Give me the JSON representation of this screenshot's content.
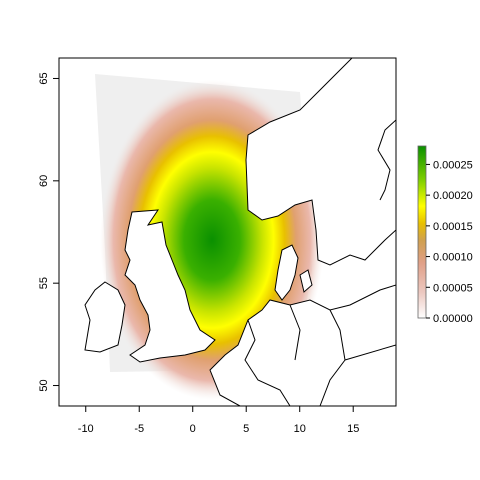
{
  "chart_data": {
    "type": "heatmap",
    "title": "",
    "xlabel": "",
    "ylabel": "",
    "xlim": [
      -12.5,
      19
    ],
    "ylim": [
      49,
      66
    ],
    "x_ticks": [
      -10,
      -5,
      0,
      5,
      10,
      15
    ],
    "y_ticks": [
      50,
      55,
      60,
      65
    ],
    "x_tick_labels": [
      "-10",
      "-5",
      "0",
      "5",
      "10",
      "15"
    ],
    "y_tick_labels": [
      "50",
      "55",
      "60",
      "65"
    ],
    "grid": false,
    "density_peak": {
      "lon": 2,
      "lat": 56.8,
      "value": 0.00028
    },
    "legend": {
      "placement": "right",
      "range": [
        0,
        0.00028
      ],
      "colors": [
        "#ffffff",
        "#e8b8ae",
        "#e09a82",
        "#c8a050",
        "#e8d000",
        "#ffff00",
        "#a0e000",
        "#20a000",
        "#0a9000"
      ],
      "labels": [
        "0.00025",
        "0.00020",
        "0.00015",
        "0.00010",
        "0.00005",
        "0.00000"
      ],
      "values": [
        0.00025,
        0.0002,
        0.00015,
        0.0001,
        5e-05,
        0.0
      ]
    }
  }
}
